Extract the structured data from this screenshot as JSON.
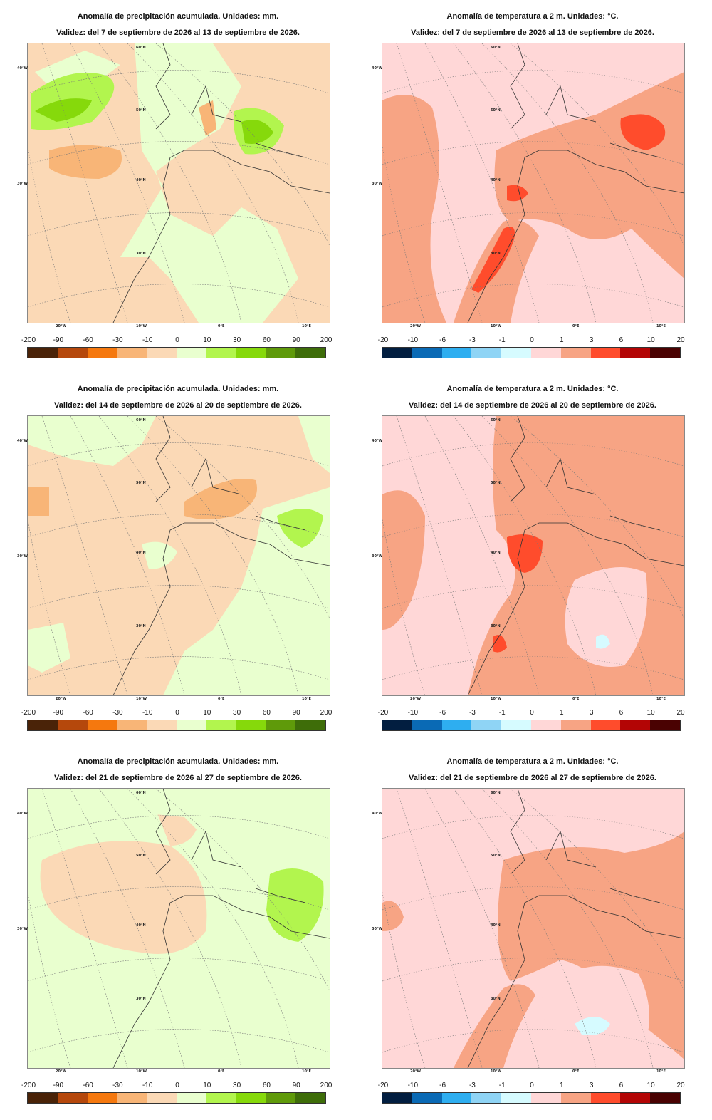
{
  "precip": {
    "title": "Anomalía de precipitación acumulada. Unidades: mm.",
    "ticks": [
      "-200",
      "-90",
      "-60",
      "-30",
      "-10",
      "0",
      "10",
      "30",
      "60",
      "90",
      "200"
    ],
    "colors": [
      "#4a2308",
      "#b5480c",
      "#f5780e",
      "#f8b577",
      "#fbd9b6",
      "#e9ffcf",
      "#b2f54e",
      "#86d90b",
      "#5f9a0a",
      "#3e6d09"
    ]
  },
  "temp": {
    "title": "Anomalía de temperatura a 2 m. Unidades: °C.",
    "ticks": [
      "-20",
      "-10",
      "-6",
      "-3",
      "-1",
      "0",
      "1",
      "3",
      "6",
      "10",
      "20"
    ],
    "colors": [
      "#021e40",
      "#0a6ab5",
      "#2eaef0",
      "#8fd4f5",
      "#d6fbff",
      "#ffd7d7",
      "#f7a484",
      "#ff4c2c",
      "#b30505",
      "#4a0202"
    ]
  },
  "map_labels": {
    "lat": [
      "60°N",
      "50°N",
      "40°N",
      "30°N"
    ],
    "lon_left": [
      "40°W",
      "30°W"
    ],
    "lon_bottom": [
      "20°W",
      "10°W",
      "0°E",
      "10°E"
    ]
  },
  "weeks": [
    {
      "validity": "Validez: del 7 de septiembre de 2026 al 13 de septiembre de 2026."
    },
    {
      "validity": "Validez: del 14 de septiembre de 2026 al 20 de septiembre de 2026."
    },
    {
      "validity": "Validez: del 21 de septiembre de 2026 al 27 de septiembre de 2026."
    }
  ]
}
